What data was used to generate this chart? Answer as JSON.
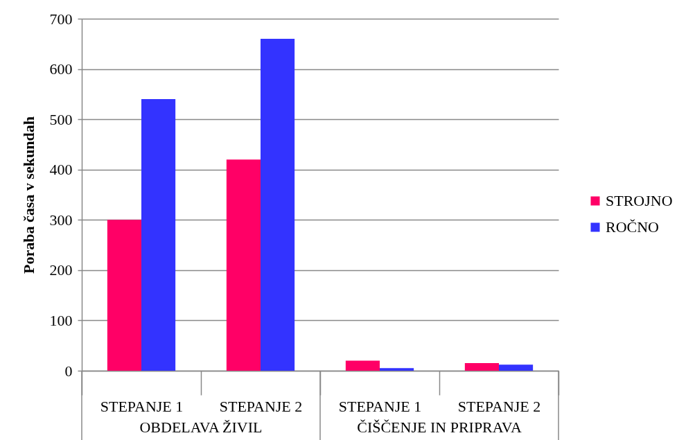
{
  "chart_data": {
    "type": "bar",
    "ylabel": "Poraba časa v sekundah",
    "categories": [
      "STEPANJE 1",
      "STEPANJE 2",
      "STEPANJE 1",
      "STEPANJE 2"
    ],
    "series": [
      {
        "name": "STROJNO",
        "color": "#ff0066",
        "values": [
          300,
          420,
          20,
          15
        ]
      },
      {
        "name": "ROČNO",
        "color": "#3333ff",
        "values": [
          540,
          660,
          5,
          12
        ]
      }
    ],
    "ylim": [
      0,
      700
    ],
    "yticks": [
      0,
      100,
      200,
      300,
      400,
      500,
      600,
      700
    ],
    "grid": "y",
    "legend": "right",
    "annotations": [
      "OBDELAVA ŽIVIL",
      "ČIŠČENJE IN PRIPRAVA"
    ]
  }
}
